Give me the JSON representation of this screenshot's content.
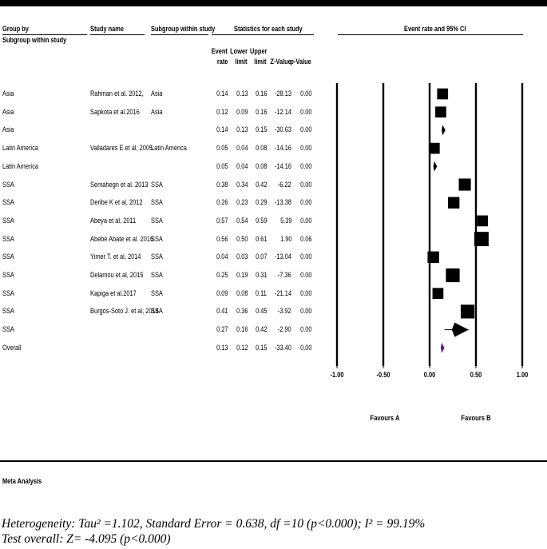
{
  "headers": {
    "group_by": "Group by",
    "subgroup_within_study_left": "Subgroup within study",
    "study_name": "Study name",
    "subgroup_within_study": "Subgroup within study",
    "statistics": "Statistics for each study",
    "event_rate_ci": "Event rate and 95% CI",
    "event_rate": [
      "Event",
      "rate"
    ],
    "lower_limit": [
      "Lower",
      "limit"
    ],
    "upper_limit": [
      "Upper",
      "limit"
    ],
    "z_value": "Z-Value",
    "p_value": "p-Value"
  },
  "rows": [
    {
      "group": "Asia",
      "study": "Rahman et al. 2012,",
      "subgroup": "Asia",
      "rate": "0.14",
      "lower": "0.13",
      "upper": "0.16",
      "z": "-28.13",
      "p": "0.00"
    },
    {
      "group": "Asia",
      "study": "Sapkota et al.2016",
      "subgroup": "Asia",
      "rate": "0.12",
      "lower": "0.09",
      "upper": "0.16",
      "z": "-12.14",
      "p": "0.00"
    },
    {
      "group": "Asia",
      "study": "",
      "subgroup": "",
      "rate": "0.14",
      "lower": "0.13",
      "upper": "0.15",
      "z": "-30.63",
      "p": "0.00"
    },
    {
      "group": "Latin America",
      "study": "Valladares E et al, 2005",
      "subgroup": "Latin America",
      "rate": "0.05",
      "lower": "0.04",
      "upper": "0.08",
      "z": "-14.16",
      "p": "0.00"
    },
    {
      "group": "Latin America",
      "study": "",
      "subgroup": "",
      "rate": "0.05",
      "lower": "0.04",
      "upper": "0.08",
      "z": "-14.16",
      "p": "0.00"
    },
    {
      "group": "SSA",
      "study": "Semahegn et al. 2013",
      "subgroup": "SSA",
      "rate": "0.38",
      "lower": "0.34",
      "upper": "0.42",
      "z": "-6.22",
      "p": "0.00"
    },
    {
      "group": "SSA",
      "study": "Deribe K et al, 2012",
      "subgroup": "SSA",
      "rate": "0.26",
      "lower": "0.23",
      "upper": "0.29",
      "z": "-13.38",
      "p": "0.00"
    },
    {
      "group": "SSA",
      "study": "Abeya et al, 2011",
      "subgroup": "SSA",
      "rate": "0.57",
      "lower": "0.54",
      "upper": "0.59",
      "z": "5.39",
      "p": "0.00"
    },
    {
      "group": "SSA",
      "study": "Abebe Abate et al. 2016",
      "subgroup": "SSA",
      "rate": "0.56",
      "lower": "0.50",
      "upper": "0.61",
      "z": "1.90",
      "p": "0.06"
    },
    {
      "group": "SSA",
      "study": "Yimer T. et al, 2014",
      "subgroup": "SSA",
      "rate": "0.04",
      "lower": "0.03",
      "upper": "0.07",
      "z": "-13.04",
      "p": "0.00"
    },
    {
      "group": "SSA",
      "study": "Delamou et al, 2015",
      "subgroup": "SSA",
      "rate": "0.25",
      "lower": "0.19",
      "upper": "0.31",
      "z": "-7.36",
      "p": "0.00"
    },
    {
      "group": "SSA",
      "study": "Kapiga et al.2017",
      "subgroup": "SSA",
      "rate": "0.09",
      "lower": "0.08",
      "upper": "0.11",
      "z": "-21.14",
      "p": "0.00"
    },
    {
      "group": "SSA",
      "study": "Burgos-Soto J. et al, 2014",
      "subgroup": "SSA",
      "rate": "0.41",
      "lower": "0.36",
      "upper": "0.45",
      "z": "-3.92",
      "p": "0.00"
    },
    {
      "group": "SSA",
      "study": "",
      "subgroup": "",
      "rate": "0.27",
      "lower": "0.16",
      "upper": "0.42",
      "z": "-2.90",
      "p": "0.00"
    },
    {
      "group": "Overall",
      "study": "",
      "subgroup": "",
      "rate": "0.13",
      "lower": "0.12",
      "upper": "0.15",
      "z": "-33.40",
      "p": "0.00"
    }
  ],
  "chart_data": {
    "type": "forest",
    "xlim": [
      -1.0,
      1.0
    ],
    "ticks": [
      "-1.00",
      "-0.50",
      "0.00",
      "0.50",
      "1.00"
    ],
    "tick_values": [
      -1.0,
      -0.5,
      0.0,
      0.5,
      1.0
    ],
    "favours_left": "Favours A",
    "favours_right": "Favours B",
    "marks": [
      {
        "kind": "square",
        "estimate": 0.14,
        "lower": 0.13,
        "upper": 0.16,
        "weight": 0.55
      },
      {
        "kind": "square",
        "estimate": 0.12,
        "lower": 0.09,
        "upper": 0.16,
        "weight": 0.55
      },
      {
        "kind": "diamond",
        "estimate": 0.14,
        "lower": 0.13,
        "upper": 0.15,
        "color": "#000000"
      },
      {
        "kind": "square",
        "estimate": 0.05,
        "lower": 0.04,
        "upper": 0.08,
        "weight": 0.55
      },
      {
        "kind": "diamond",
        "estimate": 0.05,
        "lower": 0.04,
        "upper": 0.08,
        "color": "#000000"
      },
      {
        "kind": "square",
        "estimate": 0.38,
        "lower": 0.34,
        "upper": 0.42,
        "weight": 0.65
      },
      {
        "kind": "square",
        "estimate": 0.26,
        "lower": 0.23,
        "upper": 0.29,
        "weight": 0.6
      },
      {
        "kind": "square",
        "estimate": 0.57,
        "lower": 0.54,
        "upper": 0.59,
        "weight": 0.55
      },
      {
        "kind": "square",
        "estimate": 0.56,
        "lower": 0.5,
        "upper": 0.61,
        "weight": 0.85
      },
      {
        "kind": "square",
        "estimate": 0.04,
        "lower": 0.03,
        "upper": 0.07,
        "weight": 0.6
      },
      {
        "kind": "square",
        "estimate": 0.25,
        "lower": 0.19,
        "upper": 0.31,
        "weight": 0.8
      },
      {
        "kind": "square",
        "estimate": 0.09,
        "lower": 0.08,
        "upper": 0.11,
        "weight": 0.55
      },
      {
        "kind": "square",
        "estimate": 0.41,
        "lower": 0.36,
        "upper": 0.45,
        "weight": 0.8
      },
      {
        "kind": "diamond",
        "estimate": 0.27,
        "lower": 0.16,
        "upper": 0.42,
        "color": "#000000"
      },
      {
        "kind": "diamond",
        "estimate": 0.13,
        "lower": 0.12,
        "upper": 0.15,
        "color": "#5b1a8c"
      }
    ]
  },
  "footer": {
    "meta_label": "Meta Analysis",
    "heterogeneity": "Heterogeneity: Tau² =1.102, Standard Error = 0.638, df =10 (p<0.000); I² = 99.19%",
    "test_overall": "Test overall: Z= -4.095 (p<0.000)"
  }
}
